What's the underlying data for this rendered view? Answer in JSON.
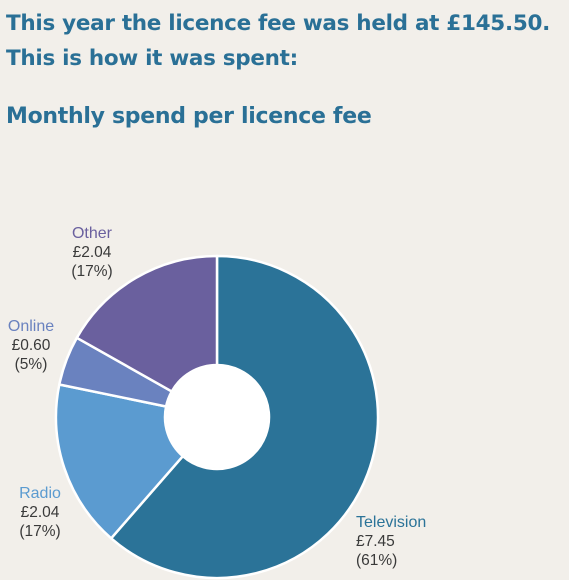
{
  "header": {
    "line1": "This year the licence fee was held at £145.50.",
    "line2": "This is how it was spent:",
    "subtitle": "Monthly spend per licence fee"
  },
  "chart_data": {
    "type": "pie",
    "donut": true,
    "title": "Monthly spend per licence fee",
    "slices": [
      {
        "name": "Television",
        "value": 7.45,
        "value_label": "£7.45",
        "percent_label": "(61%)",
        "color": "#2b7398"
      },
      {
        "name": "Radio",
        "value": 2.04,
        "value_label": "£2.04",
        "percent_label": "(17%)",
        "color": "#5b9bd0"
      },
      {
        "name": "Online",
        "value": 0.6,
        "value_label": "£0.60",
        "percent_label": "(5%)",
        "color": "#6a82bf"
      },
      {
        "name": "Other",
        "value": 2.04,
        "value_label": "£2.04",
        "percent_label": "(17%)",
        "color": "#6a609e"
      }
    ]
  }
}
